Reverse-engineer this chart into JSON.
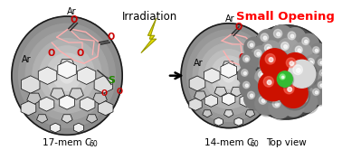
{
  "background_color": "#ffffff",
  "title_text": "Irradiation",
  "title_fontsize": 8.5,
  "small_opening_text": "Small Opening",
  "small_opening_color": "#ff0000",
  "small_opening_fontsize": 9.5,
  "label_17mem": "17-mem C",
  "label_14mem": "14-mem C",
  "label_topview": "Top view",
  "label_fontsize": 7.5,
  "o_text_color": "#cc0000",
  "s_text_color": "#228800",
  "ar_text_color": "#000000",
  "bolt_color": "#e8e000",
  "bolt_edge": "#999900",
  "arrow_color": "#000000",
  "c60_face_light": "#f0f0f0",
  "c60_face_mid": "#c0c0c0",
  "c60_face_dark": "#888888",
  "c60_edge": "#1a1a1a",
  "ring_color": "#ffb0b0",
  "sphere_dark": "#606060",
  "sphere_mid": "#909090",
  "sphere_light": "#b8b8b8",
  "red_atom": "#cc1100",
  "white_atom": "#e0e0e0",
  "green_atom": "#33bb33"
}
